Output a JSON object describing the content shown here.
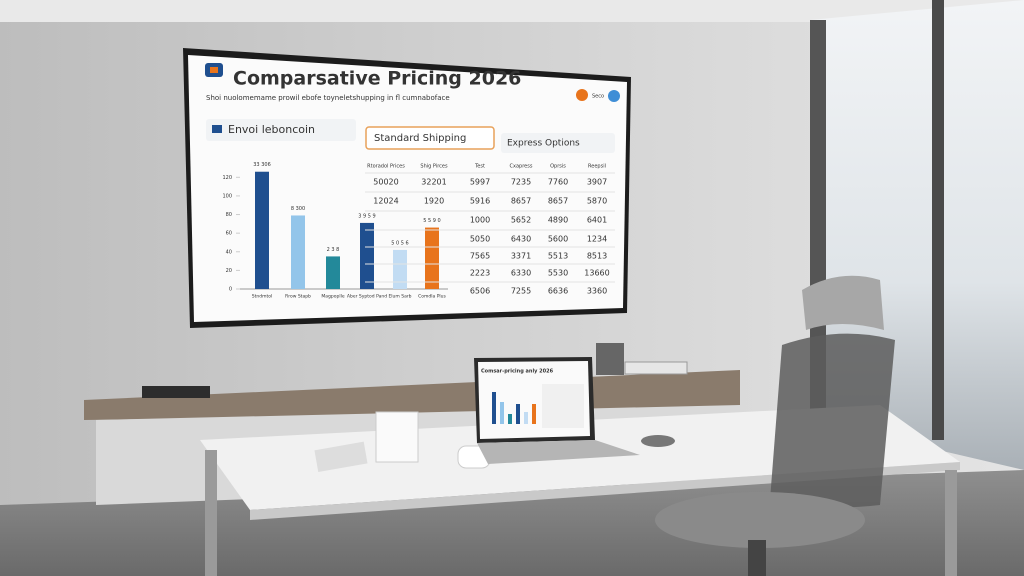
{
  "dashboard": {
    "title": "Comparsative Pricing 2026",
    "subtitle": "Shoi nuolomemame prowil ebofe toyneletshupping in fl cumnaboface",
    "badge": "Seco",
    "tabs": [
      "Envoi leboncoin",
      "Standard Shipping",
      "Express Options"
    ]
  },
  "chart_data": {
    "type": "bar",
    "categories": [
      "Stndmtol",
      "Rrow Stapb",
      "Magpoplle",
      "Aber Syptod Pand",
      "Elum Sarb",
      "Comdla Plus"
    ],
    "values": [
      126,
      79,
      35,
      71,
      42,
      66
    ],
    "bar_labels": [
      "33 306",
      "8 300",
      "2 3 8",
      "3 9 5 9",
      "5 0 5 6",
      "5 5 9 0"
    ],
    "colors": [
      "#1f4f8f",
      "#93c5ea",
      "#23899a",
      "#1f4f8f",
      "#c2dcf3",
      "#e8741c"
    ],
    "ylim": [
      0,
      130
    ],
    "yticks": [
      0,
      20,
      40,
      60,
      80,
      100,
      120
    ]
  },
  "table": {
    "headers": [
      "Rtoradol Prices",
      "Shig Pirces",
      "Test",
      "Cxapress",
      "Oprsis",
      "Reepsil"
    ],
    "rows": [
      [
        "50020",
        "32201",
        "5997",
        "7235",
        "7760",
        "3907"
      ],
      [
        "12024",
        "1920",
        "5916",
        "8657",
        "8657",
        "5870"
      ],
      [
        "1000",
        "5652",
        "4890",
        "6401"
      ],
      [
        "5050",
        "6430",
        "5600",
        "1234"
      ],
      [
        "7565",
        "3371",
        "5513",
        "8513"
      ],
      [
        "2223",
        "6330",
        "5530",
        "13660"
      ],
      [
        "6506",
        "7255",
        "6636",
        "3360"
      ]
    ]
  },
  "laptop": {
    "title": "Comsar-pricing anly 2026"
  }
}
